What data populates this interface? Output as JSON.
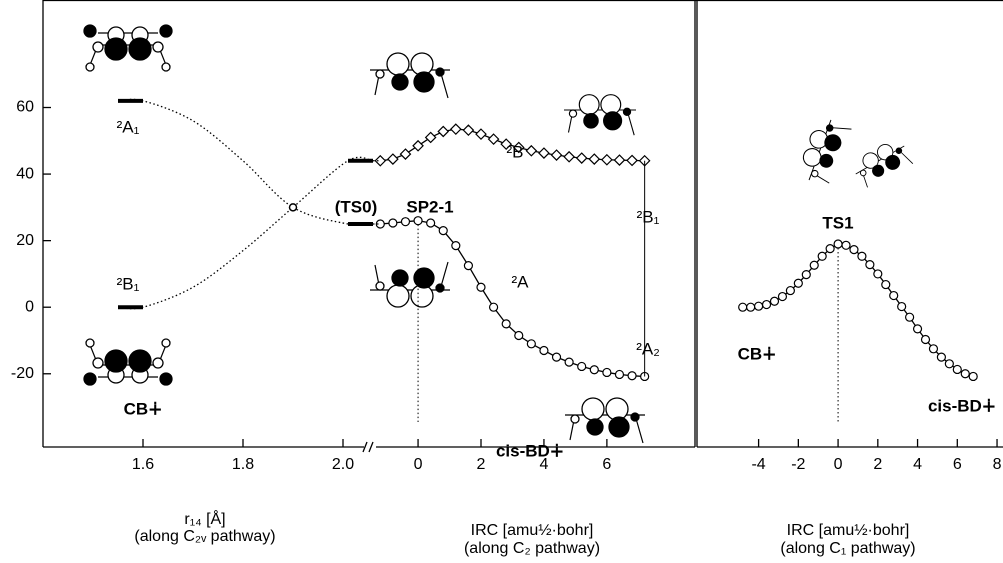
{
  "chart_data": [
    {
      "type": "line",
      "xlim": [
        1.4,
        2.05
      ],
      "xticks": [
        1.6,
        1.8,
        {
          "value": 2,
          "label": "2.0"
        }
      ],
      "ylim": [
        -42,
        92
      ],
      "yticks": [
        -20,
        0,
        20,
        40,
        60
      ],
      "xlabel": [
        "r₁₄ [Å]",
        "(along C₂ᵥ pathway)"
      ],
      "x": [
        1.55,
        1.6,
        1.7,
        1.8,
        1.9,
        2.01,
        2.06
      ],
      "series": [
        {
          "color": "#000000",
          "style": "dotted",
          "values": [
            62,
            62,
            56,
            44,
            30,
            25,
            25
          ]
        },
        {
          "color": "#000000",
          "style": "dotted",
          "values": [
            0,
            0,
            6,
            17,
            30,
            44,
            44
          ]
        }
      ],
      "level_bars": true,
      "annotations": [
        "²A₁",
        "²B₁",
        "CB∔"
      ]
    },
    {
      "type": "line",
      "xlim": [
        -1.4,
        8.8
      ],
      "xticks": [
        0,
        2,
        4,
        6
      ],
      "ylim": [
        -42,
        92
      ],
      "xlabel": [
        "IRC [amu½·bohr]",
        "(along C₂ pathway)"
      ],
      "x": [
        -1.2,
        -0.8,
        -0.4,
        0,
        0.4,
        0.8,
        1.2,
        1.6,
        2,
        2.4,
        2.8,
        3.2,
        3.6,
        4,
        4.4,
        4.8,
        5.2,
        5.6,
        6,
        6.4,
        6.8,
        7.2
      ],
      "series": [
        {
          "color": "#000000",
          "marker": "circle",
          "values": [
            25,
            25.3,
            25.7,
            26,
            25.3,
            23,
            18.5,
            12.5,
            6,
            0,
            -5,
            -8.5,
            -11,
            -13,
            -15,
            -16.5,
            -17.8,
            -18.8,
            -19.6,
            -20.2,
            -20.6,
            -20.8
          ]
        },
        {
          "color": "#000000",
          "marker": "diamond",
          "values": [
            44,
            44.5,
            46,
            48.5,
            51,
            52.8,
            53.5,
            53.2,
            52,
            50.5,
            49,
            48,
            47,
            46.3,
            45.7,
            45.2,
            44.8,
            44.5,
            44.3,
            44.2,
            44.1,
            44
          ]
        }
      ],
      "vline": 0,
      "annotations": [
        "(TS0)",
        "SP2-1",
        "²B",
        "²B₁",
        "²A",
        "²A₂",
        "cis-BD∔"
      ]
    },
    {
      "type": "line",
      "xlim": [
        -7.1,
        8.3
      ],
      "xticks": [
        -4,
        -2,
        0,
        2,
        4,
        6,
        8
      ],
      "ylim": [
        -42,
        92
      ],
      "xlabel": [
        "IRC [amu½·bohr]",
        "(along C₁ pathway)"
      ],
      "x": [
        -4.8,
        -4.4,
        -4,
        -3.6,
        -3.2,
        -2.8,
        -2.4,
        -2,
        -1.6,
        -1.2,
        -0.8,
        -0.4,
        0,
        0.4,
        0.8,
        1.2,
        1.6,
        2,
        2.4,
        2.8,
        3.2,
        3.6,
        4,
        4.4,
        4.8,
        5.2,
        5.6,
        6,
        6.4,
        6.8
      ],
      "series": [
        {
          "color": "#000000",
          "marker": "circle",
          "values": [
            0,
            0,
            0.3,
            0.8,
            1.8,
            3.2,
            5,
            7.2,
            9.8,
            12.6,
            15.3,
            17.6,
            19,
            18.6,
            17.3,
            15.3,
            12.8,
            10,
            6.8,
            3.5,
            0.2,
            -3,
            -6.5,
            -9.7,
            -12.5,
            -15,
            -17,
            -18.7,
            -20,
            -20.8
          ]
        }
      ],
      "vline": 0,
      "annotations": [
        "TS1",
        "CB∔",
        "cis-BD∔"
      ]
    }
  ]
}
